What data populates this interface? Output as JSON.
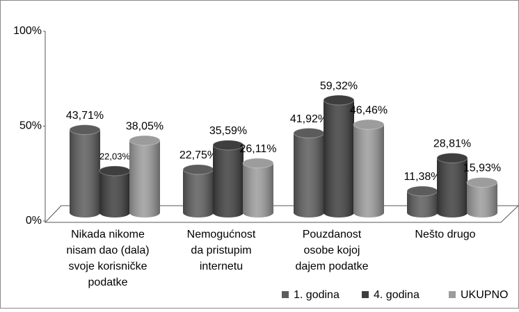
{
  "chart_data": {
    "type": "bar3d",
    "categories": [
      [
        "Nikada nikome",
        "nisam dao (dala)",
        "svoje korisničke",
        "podatke"
      ],
      [
        "Nemogućnost",
        "da pristupim",
        "internetu"
      ],
      [
        "Pouzdanost",
        "osobe kojoj",
        "dajem podatke"
      ],
      [
        "Nešto drugo"
      ]
    ],
    "series": [
      {
        "name": "1. godina",
        "color": "#5c5c5c",
        "values": [
          43.71,
          22.75,
          41.92,
          11.38
        ],
        "value_labels": [
          "43,71%",
          "22,75%",
          "41,92%",
          "11,38%"
        ]
      },
      {
        "name": "4. godina",
        "color": "#3e3e3e",
        "values": [
          22.03,
          35.59,
          59.32,
          28.81
        ],
        "value_labels": [
          "22,03%",
          "35,59%",
          "59,32%",
          "28,81%"
        ]
      },
      {
        "name": "UKUPNO",
        "color": "#9c9c9c",
        "values": [
          38.05,
          26.11,
          46.46,
          15.93
        ],
        "value_labels": [
          "38,05%",
          "26,11%",
          "46,46%",
          "15,93%"
        ]
      }
    ],
    "ylim": [
      0,
      100
    ],
    "yticks": [
      {
        "value": 0,
        "label": "0%"
      },
      {
        "value": 50,
        "label": "50%"
      },
      {
        "value": 100,
        "label": "100%"
      }
    ],
    "legend": "bottom-right"
  }
}
